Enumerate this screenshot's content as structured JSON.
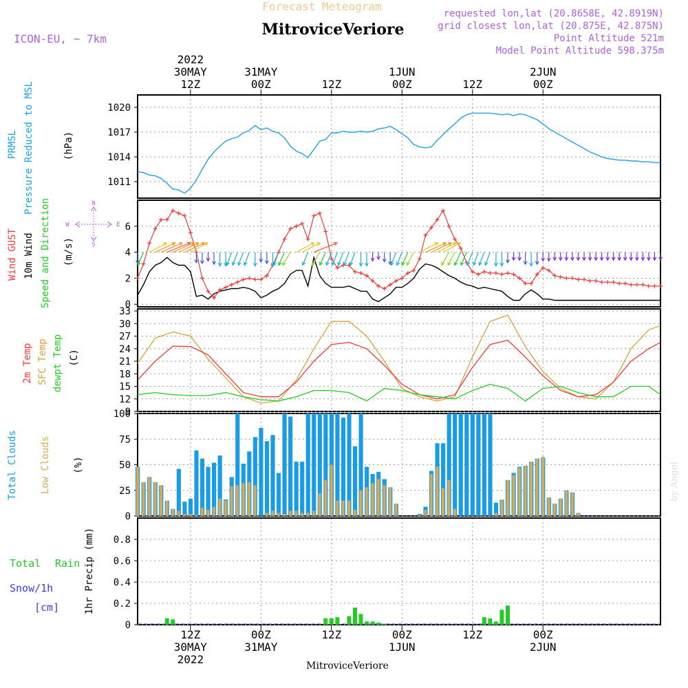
{
  "header": {
    "subtitle": "Forecast Meteogram",
    "location": "MitroviceVeriore",
    "model": "ICON-EU, ~ 7km",
    "requested": "requested lon,lat (20.8658E, 42.8919N)",
    "closest": "grid closest lon,lat (20.875E, 42.875N)",
    "point_alt": "Point Altitude 521m",
    "model_alt": "Model Point Altitude 598.375m",
    "credit": "by Angel"
  },
  "colors": {
    "pressure": "#1ea0e6",
    "gust": "#ee3a3a",
    "wind10m": "#000000",
    "temp2m": "#ee3a3a",
    "sfc": "#d9a23a",
    "dewpt": "#22cc22",
    "clouds_total": "#1a9be6",
    "clouds_low": "#d6aa58",
    "rain": "#22cc22",
    "snow": "#3a3aee",
    "purple": "#b060e0"
  },
  "time_axis": {
    "top_ticks": [
      {
        "t": 12,
        "line1": "2022",
        "line2": "30MAY",
        "line3": "12Z"
      },
      {
        "t": 24,
        "line1": "",
        "line2": "31MAY",
        "line3": "00Z"
      },
      {
        "t": 36,
        "line1": "",
        "line2": "",
        "line3": "12Z"
      },
      {
        "t": 48,
        "line1": "",
        "line2": "1JUN",
        "line3": "00Z"
      },
      {
        "t": 60,
        "line1": "",
        "line2": "",
        "line3": "12Z"
      },
      {
        "t": 72,
        "line1": "",
        "line2": "2JUN",
        "line3": "00Z"
      }
    ],
    "bottom_ticks": [
      {
        "t": 12,
        "line1": "12Z",
        "line2": "30MAY",
        "line3": "2022"
      },
      {
        "t": 24,
        "line1": "00Z",
        "line2": "31MAY",
        "line3": ""
      },
      {
        "t": 36,
        "line1": "12Z",
        "line2": "",
        "line3": ""
      },
      {
        "t": 48,
        "line1": "00Z",
        "line2": "1JUN",
        "line3": ""
      },
      {
        "t": 60,
        "line1": "12Z",
        "line2": "",
        "line3": ""
      },
      {
        "t": 72,
        "line1": "00Z",
        "line2": "2JUN",
        "line3": ""
      }
    ],
    "bottom_name": "MitroviceVeriore"
  },
  "panels": {
    "pressure": {
      "labels": [
        "PRMSL",
        "Pressure Reduced to MSL",
        "(hPa)"
      ],
      "yticks": [
        "1011",
        "1014",
        "1017",
        "1020"
      ]
    },
    "wind": {
      "labels": [
        "Wind GUST",
        "10m Wind",
        "Speed and Direction",
        "(m/s)"
      ],
      "yticks": [
        "0",
        "2",
        "4",
        "6"
      ],
      "compass": [
        "N",
        "W",
        "E",
        "S"
      ]
    },
    "temp": {
      "labels": [
        "2m Temp",
        "SFC Temp",
        "dewpt Temp",
        "(C)"
      ],
      "yticks": [
        "9",
        "12",
        "15",
        "18",
        "21",
        "24",
        "27",
        "30",
        "33"
      ]
    },
    "clouds": {
      "labels": [
        "Total Clouds",
        "Low Clouds",
        "(%)"
      ],
      "yticks": [
        "0",
        "25",
        "50",
        "75",
        "100"
      ]
    },
    "precip": {
      "labels": [
        "Total",
        "Rain",
        "Snow/1h",
        "[cm]",
        "1hr Precip (mm)"
      ],
      "yticks": [
        "0",
        "0.2",
        "0.4",
        "0.6",
        "0.8"
      ]
    }
  },
  "chart_data": {
    "type": "line",
    "x_unit": "hours from 30MAY 00Z",
    "x_range": [
      3,
      92
    ],
    "pressure": {
      "ylim": [
        1009,
        1021.5
      ],
      "t": [
        3,
        4,
        5,
        6,
        7,
        8,
        9,
        10,
        11,
        12,
        13,
        14,
        15,
        16,
        17,
        18,
        19,
        20,
        21,
        22,
        23,
        24,
        25,
        26,
        27,
        28,
        29,
        30,
        31,
        32,
        33,
        34,
        35,
        36,
        37,
        38,
        39,
        40,
        41,
        42,
        43,
        44,
        45,
        46,
        47,
        48,
        49,
        50,
        51,
        52,
        53,
        54,
        55,
        56,
        57,
        58,
        59,
        60,
        61,
        62,
        63,
        64,
        65,
        66,
        67,
        68,
        69,
        70,
        71,
        72,
        73,
        74,
        75,
        76,
        77,
        78,
        79,
        80,
        81,
        82,
        83,
        84,
        85,
        86,
        87,
        88,
        89,
        90,
        91,
        92
      ],
      "values": [
        1012.2,
        1012.1,
        1011.8,
        1011.7,
        1011.4,
        1010.8,
        1010.1,
        1010.0,
        1009.6,
        1010.2,
        1011.2,
        1012.5,
        1013.7,
        1014.6,
        1015.3,
        1015.9,
        1016.2,
        1016.4,
        1016.9,
        1017.2,
        1017.8,
        1017.3,
        1017.5,
        1017.1,
        1016.9,
        1016.3,
        1015.3,
        1014.7,
        1014.4,
        1013.9,
        1014.9,
        1015.9,
        1016.1,
        1016.9,
        1016.9,
        1017.1,
        1017.0,
        1017.0,
        1017.1,
        1017.0,
        1017.1,
        1017.4,
        1017.5,
        1017.7,
        1017.3,
        1016.8,
        1016.3,
        1015.5,
        1015.2,
        1015.1,
        1015.2,
        1016.0,
        1016.7,
        1017.4,
        1018.0,
        1018.7,
        1019.1,
        1019.3,
        1019.3,
        1019.3,
        1019.3,
        1019.2,
        1019.1,
        1019.2,
        1019.0,
        1019.2,
        1019.1,
        1018.8,
        1018.5,
        1018.0,
        1017.4,
        1017.0,
        1016.6,
        1016.2,
        1015.8,
        1015.4,
        1015.0,
        1014.6,
        1014.3,
        1014.0,
        1013.8,
        1013.7,
        1013.6,
        1013.6,
        1013.5,
        1013.5,
        1013.4,
        1013.4,
        1013.3,
        1013.3
      ]
    },
    "wind": {
      "ylim": [
        -0.2,
        8
      ],
      "t": [
        3,
        4,
        5,
        6,
        7,
        8,
        9,
        10,
        11,
        12,
        13,
        14,
        15,
        16,
        17,
        18,
        19,
        20,
        21,
        22,
        23,
        24,
        25,
        26,
        27,
        28,
        29,
        30,
        31,
        32,
        33,
        34,
        35,
        36,
        37,
        38,
        39,
        40,
        41,
        42,
        43,
        44,
        45,
        46,
        47,
        48,
        49,
        50,
        51,
        52,
        53,
        54,
        55,
        56,
        57,
        58,
        59,
        60,
        61,
        62,
        63,
        64,
        65,
        66,
        67,
        68,
        69,
        70,
        71,
        72,
        73,
        74,
        75,
        76,
        77,
        78,
        79,
        80,
        81,
        82,
        83,
        84,
        85,
        86,
        87,
        88,
        89,
        90,
        91,
        92
      ],
      "gust": [
        2.0,
        3.1,
        4.7,
        5.8,
        6.5,
        6.5,
        7.2,
        7.0,
        6.8,
        5.5,
        4.0,
        2.0,
        1.0,
        0.5,
        1.1,
        1.3,
        1.5,
        1.7,
        1.9,
        2.0,
        1.9,
        1.9,
        2.2,
        3.0,
        4.0,
        5.0,
        5.8,
        6.0,
        6.2,
        5.0,
        6.8,
        7.0,
        5.6,
        3.5,
        2.8,
        3.0,
        3.0,
        2.5,
        2.4,
        2.2,
        1.8,
        1.4,
        1.2,
        1.5,
        1.8,
        2.0,
        2.4,
        2.6,
        3.5,
        5.3,
        5.9,
        6.5,
        7.2,
        6.0,
        5.0,
        4.3,
        3.2,
        2.5,
        2.3,
        2.5,
        2.4,
        2.4,
        2.3,
        2.4,
        2.3,
        2.0,
        1.6,
        1.6,
        2.3,
        2.8,
        2.6,
        2.2,
        2.1,
        2.0,
        2.0,
        1.9,
        1.9,
        1.8,
        1.8,
        1.7,
        1.7,
        1.7,
        1.6,
        1.6,
        1.5,
        1.5,
        1.5,
        1.4,
        1.4,
        1.4
      ],
      "wind10m": [
        0.7,
        1.5,
        2.5,
        3.0,
        3.2,
        3.6,
        3.2,
        3.0,
        3.0,
        2.5,
        0.6,
        0.7,
        0.4,
        0.8,
        1.0,
        1.1,
        1.2,
        1.2,
        1.3,
        1.2,
        1.0,
        0.5,
        0.7,
        1.0,
        1.2,
        1.6,
        2.3,
        2.6,
        2.6,
        1.4,
        3.6,
        2.2,
        1.6,
        1.3,
        1.3,
        1.3,
        1.4,
        1.2,
        1.0,
        1.0,
        0.4,
        0.2,
        0.5,
        0.8,
        1.3,
        1.3,
        1.6,
        2.0,
        2.7,
        3.1,
        3.0,
        2.8,
        2.5,
        2.2,
        2.0,
        1.7,
        1.5,
        1.4,
        1.2,
        1.3,
        1.2,
        1.1,
        1.0,
        0.6,
        0.3,
        0.3,
        0.8,
        1.1,
        0.8,
        0.4,
        0.4,
        0.3,
        0.3,
        0.3,
        0.3,
        0.3,
        0.3,
        0.3,
        0.3,
        0.3,
        0.3,
        0.3,
        0.3,
        0.3,
        0.3,
        0.3,
        0.3,
        0.3,
        0.3,
        0.3
      ],
      "arrow_level": 4
    },
    "temp": {
      "ylim": [
        9,
        33.5
      ],
      "t": [
        3,
        6,
        9,
        12,
        15,
        18,
        21,
        24,
        27,
        30,
        33,
        36,
        39,
        42,
        45,
        48,
        51,
        54,
        57,
        60,
        63,
        66,
        69,
        72,
        75,
        78,
        81,
        84,
        87,
        90,
        92
      ],
      "temp2m": [
        16.5,
        21.0,
        24.6,
        24.5,
        22.5,
        18.0,
        13.5,
        12.5,
        12.5,
        16.0,
        21.0,
        25.0,
        25.5,
        24.0,
        20.0,
        15.5,
        13.0,
        12.0,
        13.0,
        19.5,
        25.0,
        26.0,
        22.0,
        17.5,
        14.0,
        12.5,
        13.0,
        16.0,
        21.0,
        24.0,
        25.5
      ],
      "sfc": [
        20.5,
        26.5,
        28.0,
        27.0,
        21.5,
        17.0,
        12.5,
        11.0,
        11.5,
        16.5,
        24.0,
        30.5,
        30.5,
        27.0,
        21.0,
        14.5,
        12.5,
        11.5,
        12.5,
        22.0,
        30.5,
        32.0,
        24.5,
        18.5,
        14.5,
        12.5,
        12.0,
        16.0,
        24.0,
        28.5,
        29.5
      ],
      "dewpt": [
        13.0,
        13.5,
        13.0,
        12.8,
        12.8,
        13.5,
        12.5,
        11.8,
        11.5,
        12.5,
        14.0,
        14.0,
        13.5,
        11.5,
        14.5,
        14.0,
        13.0,
        12.5,
        12.0,
        14.0,
        15.5,
        14.5,
        11.5,
        14.5,
        15.0,
        13.5,
        12.5,
        12.5,
        15.0,
        15.0,
        13.0
      ]
    },
    "clouds": {
      "ylim": [
        0,
        100
      ],
      "t0": 3,
      "total": [
        48,
        33,
        38,
        33,
        30,
        15,
        7,
        46,
        14,
        17,
        64,
        56,
        48,
        52,
        59,
        16,
        38,
        100,
        51,
        63,
        77,
        86,
        73,
        79,
        42,
        100,
        97,
        53,
        53,
        100,
        100,
        100,
        100,
        100,
        100,
        96,
        100,
        68,
        100,
        48,
        41,
        43,
        36,
        28,
        12,
        0,
        0,
        0,
        2,
        9,
        44,
        71,
        71,
        100,
        100,
        100,
        100,
        100,
        100,
        100,
        100,
        13,
        16,
        35,
        42,
        48,
        49,
        53,
        56,
        57,
        18,
        12,
        17,
        25,
        23,
        3
      ],
      "low": [
        48,
        33,
        38,
        33,
        30,
        15,
        7,
        5,
        2,
        2,
        1,
        8,
        6,
        9,
        17,
        15,
        29,
        30,
        32,
        33,
        30,
        0,
        3,
        5,
        3,
        2,
        5,
        5,
        3,
        3,
        5,
        22,
        35,
        50,
        15,
        15,
        15,
        6,
        25,
        28,
        32,
        36,
        30,
        28,
        12,
        0,
        0,
        0,
        1,
        6,
        41,
        48,
        27,
        35,
        7,
        0,
        0,
        0,
        0,
        0,
        0,
        3,
        16,
        35,
        40,
        47,
        49,
        53,
        56,
        58,
        18,
        12,
        17,
        25,
        23,
        3
      ]
    },
    "precip": {
      "ylim": [
        0,
        1.0
      ],
      "t": [
        8,
        9,
        35,
        36,
        37,
        39,
        40,
        41,
        42,
        43,
        44,
        45,
        62,
        63,
        64,
        65,
        66,
        67
      ],
      "values": [
        0.06,
        0.05,
        0.06,
        0.06,
        0.07,
        0.08,
        0.16,
        0.1,
        0.03,
        0.03,
        0.02,
        0.01,
        0.07,
        0.06,
        0.03,
        0.14,
        0.18,
        0.0
      ]
    }
  }
}
